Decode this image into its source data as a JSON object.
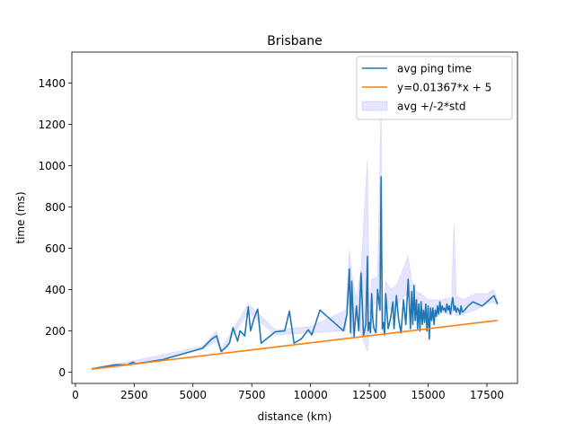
{
  "chart_data": {
    "type": "line",
    "title": "Brisbane",
    "xlabel": "distance (km)",
    "ylabel": "time (ms)",
    "xlim": [
      -150,
      18800
    ],
    "ylim": [
      -55,
      1550
    ],
    "xticks": [
      0,
      2500,
      5000,
      7500,
      10000,
      12500,
      15000,
      17500
    ],
    "yticks": [
      0,
      200,
      400,
      600,
      800,
      1000,
      1200,
      1400
    ],
    "grid": false,
    "legend_position": "upper right",
    "series": [
      {
        "name": "avg ping time",
        "color": "#1f77b4",
        "style": "line",
        "x": [
          700,
          1200,
          1700,
          2200,
          2450,
          2550,
          3700,
          5400,
          5800,
          6000,
          6200,
          6400,
          6550,
          6700,
          6900,
          7000,
          7200,
          7350,
          7450,
          7600,
          7750,
          7900,
          8500,
          8900,
          9100,
          9300,
          9600,
          9900,
          10050,
          10400,
          11000,
          11400,
          11550,
          11650,
          11700,
          11750,
          11850,
          11950,
          12050,
          12150,
          12250,
          12350,
          12420,
          12450,
          12500,
          12550,
          12600,
          12650,
          12700,
          12780,
          12850,
          12950,
          13000,
          13050,
          13100,
          13150,
          13200,
          13300,
          13400,
          13500,
          13550,
          13650,
          13750,
          13850,
          13950,
          14050,
          14150,
          14250,
          14300,
          14350,
          14400,
          14450,
          14500,
          14550,
          14600,
          14650,
          14700,
          14750,
          14800,
          14850,
          14900,
          14950,
          15000,
          15050,
          15100,
          15150,
          15200,
          15250,
          15300,
          15350,
          15400,
          15450,
          15500,
          15550,
          15600,
          15650,
          15700,
          15750,
          15800,
          15850,
          15900,
          15950,
          16000,
          16050,
          16100,
          16150,
          16200,
          16250,
          16300,
          16350,
          16400,
          16450,
          16550,
          16700,
          16900,
          17100,
          17300,
          17600,
          17800,
          17950
        ],
        "values": [
          15,
          25,
          35,
          35,
          48,
          40,
          60,
          115,
          160,
          175,
          100,
          120,
          140,
          215,
          150,
          200,
          175,
          315,
          200,
          260,
          305,
          140,
          195,
          200,
          295,
          140,
          160,
          205,
          180,
          300,
          240,
          200,
          280,
          500,
          190,
          440,
          170,
          320,
          200,
          480,
          175,
          230,
          560,
          200,
          240,
          190,
          380,
          250,
          210,
          190,
          400,
          300,
          945,
          210,
          240,
          180,
          380,
          210,
          260,
          340,
          210,
          370,
          250,
          190,
          350,
          230,
          450,
          210,
          390,
          230,
          420,
          250,
          350,
          210,
          330,
          200,
          340,
          230,
          300,
          240,
          330,
          200,
          320,
          160,
          310,
          250,
          310,
          230,
          300,
          270,
          320,
          280,
          340,
          290,
          320,
          300,
          310,
          290,
          330,
          300,
          320,
          280,
          330,
          360,
          300,
          320,
          290,
          310,
          300,
          280,
          320,
          290,
          300,
          320,
          340,
          330,
          320,
          350,
          370,
          330
        ]
      },
      {
        "name": "y=0.01367*x + 5",
        "color": "#ff7f0e",
        "style": "line",
        "x": [
          700,
          17950
        ],
        "values": [
          14.6,
          250.4
        ]
      },
      {
        "name": "avg +/-2*std",
        "color": "#0000ff",
        "style": "band",
        "x": [
          700,
          2500,
          5400,
          6000,
          6200,
          7350,
          8500,
          10000,
          11500,
          11650,
          11750,
          11950,
          12150,
          12420,
          12500,
          12600,
          12850,
          13000,
          13050,
          13200,
          13400,
          13650,
          14150,
          14300,
          14500,
          14700,
          15000,
          15500,
          16000,
          16100,
          16200,
          16500,
          17000,
          17500,
          17800,
          17950
        ],
        "lower": [
          10,
          35,
          110,
          150,
          90,
          290,
          180,
          190,
          200,
          410,
          170,
          270,
          180,
          100,
          200,
          310,
          350,
          640,
          180,
          320,
          300,
          320,
          390,
          330,
          300,
          280,
          280,
          290,
          280,
          300,
          270,
          280,
          300,
          330,
          340,
          320
        ],
        "upper": [
          20,
          55,
          125,
          200,
          110,
          330,
          205,
          220,
          300,
          590,
          470,
          350,
          510,
          1030,
          280,
          450,
          460,
          1290,
          250,
          440,
          400,
          420,
          560,
          440,
          390,
          380,
          350,
          350,
          360,
          720,
          370,
          350,
          380,
          380,
          400,
          340
        ]
      }
    ]
  }
}
